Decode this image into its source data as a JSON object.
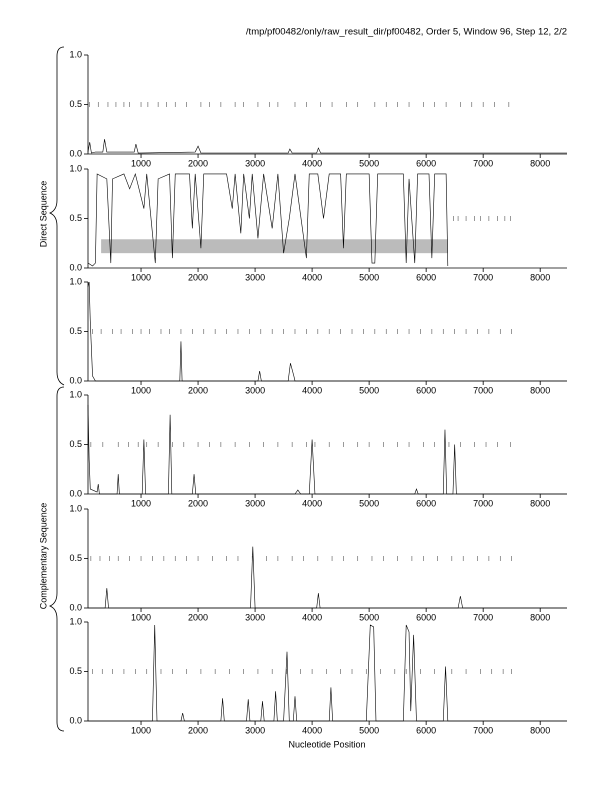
{
  "header": {
    "title": "/tmp/pf00482/only/raw_result_dir/pf00482, Order 5, Window 96, Step 12, 2/2",
    "xlabel": "Nucleotide Position",
    "groups": [
      "Direct Sequence",
      "Complementary Sequence"
    ]
  },
  "chart_data": [
    {
      "type": "line",
      "color": "#000000",
      "xlim": [
        70,
        8470
      ],
      "ylim": [
        0,
        1
      ],
      "xticks": [
        1000,
        2000,
        3000,
        4000,
        5000,
        6000,
        7000,
        8000
      ],
      "yticks": [
        {
          "value": 0,
          "label": "0.0"
        },
        0.5,
        {
          "value": 1,
          "label": "1.0"
        }
      ],
      "x": [
        70,
        100,
        130,
        200,
        330,
        360,
        400,
        880,
        910,
        950,
        1950,
        2000,
        2050,
        3580,
        3610,
        3650,
        4080,
        4110,
        4150,
        6000,
        8470
      ],
      "values": [
        0.02,
        0.12,
        0.01,
        0.02,
        0.02,
        0.15,
        0.02,
        0.02,
        0.1,
        0.01,
        0.02,
        0.08,
        0.01,
        0.01,
        0.05,
        0.01,
        0.01,
        0.06,
        0.01,
        0.01,
        0.01
      ],
      "orf_marks": [
        100,
        250,
        420,
        560,
        700,
        800,
        1000,
        1120,
        1300,
        1450,
        1600,
        1800,
        2050,
        2200,
        2400,
        2650,
        2800,
        3050,
        3250,
        3400,
        3700,
        3900,
        4150,
        4350,
        4600,
        4800,
        5100,
        5300,
        5500,
        5700,
        5950,
        6150,
        6350,
        6600,
        6800,
        7000,
        7200,
        7450
      ]
    },
    {
      "type": "line",
      "color": "#000000",
      "xlim": [
        70,
        8470
      ],
      "ylim": [
        0,
        1
      ],
      "xticks": [
        1000,
        2000,
        3000,
        4000,
        5000,
        6000,
        7000,
        8000
      ],
      "yticks": [
        {
          "value": 0,
          "label": "0.0"
        },
        0.5,
        {
          "value": 1,
          "label": "1.0"
        }
      ],
      "x": [
        70,
        150,
        200,
        230,
        400,
        470,
        500,
        700,
        800,
        900,
        1050,
        1100,
        1250,
        1300,
        1500,
        1550,
        1600,
        1850,
        1900,
        1950,
        2050,
        2100,
        2500,
        2600,
        2650,
        2750,
        2800,
        2900,
        2950,
        3050,
        3150,
        3300,
        3400,
        3500,
        3600,
        3700,
        3900,
        3950,
        4100,
        4200,
        4300,
        4500,
        4550,
        4600,
        5000,
        5050,
        5100,
        5150,
        5600,
        5650,
        5700,
        5800,
        5850,
        6050,
        6100,
        6150,
        6350,
        6380
      ],
      "values": [
        0.05,
        0.02,
        0.05,
        0.95,
        0.9,
        0.05,
        0.9,
        0.95,
        0.8,
        0.95,
        0.6,
        0.95,
        0.05,
        0.9,
        0.95,
        0.1,
        0.95,
        0.95,
        0.4,
        0.95,
        0.2,
        0.95,
        0.95,
        0.6,
        0.95,
        0.35,
        0.95,
        0.5,
        0.95,
        0.3,
        0.95,
        0.4,
        0.95,
        0.15,
        0.5,
        0.95,
        0.1,
        0.95,
        0.95,
        0.5,
        0.95,
        0.95,
        0.2,
        0.95,
        0.95,
        0.05,
        0.05,
        0.95,
        0.95,
        0.05,
        0.9,
        0.05,
        0.95,
        0.95,
        0.1,
        0.95,
        0.95,
        0.02
      ],
      "highlight": {
        "x": [
          300,
          6380
        ],
        "y": [
          0.15,
          0.29
        ]
      },
      "orf_marks": [
        6480,
        6560,
        6700,
        6850,
        6950,
        7100,
        7250,
        7380,
        7480
      ]
    },
    {
      "type": "line",
      "color": "#000000",
      "xlim": [
        70,
        8470
      ],
      "ylim": [
        0,
        1
      ],
      "xticks": [
        1000,
        2000,
        3000,
        4000,
        5000,
        6000,
        7000,
        8000
      ],
      "yticks": [
        {
          "value": 0,
          "label": "0.0"
        },
        0.5,
        {
          "value": 1,
          "label": "1.0"
        }
      ],
      "x": [
        70,
        90,
        110,
        150,
        200,
        1680,
        1700,
        1720,
        3050,
        3080,
        3110,
        3580,
        3620,
        3680,
        3700,
        8470
      ],
      "values": [
        0.95,
        1.0,
        0.6,
        0.05,
        0,
        0,
        0.4,
        0,
        0,
        0.1,
        0,
        0,
        0.18,
        0.05,
        0,
        0
      ],
      "orf_marks": [
        150,
        300,
        500,
        650,
        850,
        1000,
        1150,
        1350,
        1500,
        1700,
        1900,
        2100,
        2300,
        2500,
        2700,
        2900,
        3100,
        3300,
        3500,
        3700,
        3900,
        4100,
        4300,
        4500,
        4700,
        4900,
        5100,
        5300,
        5500,
        5700,
        5900,
        6100,
        6300,
        6500,
        6700,
        6900,
        7100,
        7300,
        7500
      ]
    },
    {
      "type": "line",
      "color": "#000000",
      "xlim": [
        70,
        8470
      ],
      "ylim": [
        0,
        1
      ],
      "xticks": [
        1000,
        2000,
        3000,
        4000,
        5000,
        6000,
        7000,
        8000
      ],
      "yticks": [
        {
          "value": 0,
          "label": "0.0"
        },
        0.5,
        {
          "value": 1,
          "label": "1.0"
        }
      ],
      "x": [
        70,
        90,
        110,
        230,
        250,
        270,
        580,
        600,
        620,
        1020,
        1050,
        1080,
        1480,
        1510,
        1540,
        1900,
        1930,
        1960,
        3700,
        3750,
        3800,
        3950,
        4000,
        4050,
        5800,
        5830,
        5860,
        6300,
        6330,
        6360,
        6470,
        6500,
        6530,
        8470
      ],
      "values": [
        0.9,
        0.35,
        0.05,
        0.02,
        0.1,
        0,
        0,
        0.2,
        0,
        0,
        0.55,
        0,
        0,
        0.8,
        0,
        0,
        0.2,
        0,
        0,
        0.04,
        0,
        0,
        0.55,
        0,
        0,
        0.05,
        0,
        0,
        0.65,
        0,
        0,
        0.5,
        0,
        0
      ],
      "orf_marks": [
        120,
        330,
        600,
        780,
        950,
        1100,
        1300,
        1550,
        1750,
        2000,
        2200,
        2400,
        2650,
        2900,
        3150,
        3400,
        3650,
        3900,
        4050,
        4300,
        4550,
        4800,
        5000,
        5250,
        5500,
        5700,
        5950,
        6150,
        6400,
        6600,
        6850,
        7050,
        7250,
        7480
      ]
    },
    {
      "type": "line",
      "color": "#000000",
      "xlim": [
        70,
        8470
      ],
      "ylim": [
        0,
        1
      ],
      "xticks": [
        1000,
        2000,
        3000,
        4000,
        5000,
        6000,
        7000,
        8000
      ],
      "yticks": [
        {
          "value": 0,
          "label": "0.0"
        },
        0.5,
        {
          "value": 1,
          "label": "1.0"
        }
      ],
      "x": [
        70,
        370,
        400,
        430,
        2920,
        2960,
        3000,
        4080,
        4110,
        4140,
        6560,
        6600,
        6640,
        8470
      ],
      "values": [
        0,
        0,
        0.2,
        0,
        0,
        0.62,
        0,
        0,
        0.15,
        0,
        0,
        0.12,
        0,
        0
      ],
      "orf_marks": [
        120,
        280,
        450,
        600,
        800,
        1000,
        1200,
        1400,
        1600,
        1800,
        2000,
        2250,
        2500,
        2700,
        2950,
        3200,
        3400,
        3650,
        3850,
        4100,
        4350,
        4550,
        4800,
        5050,
        5250,
        5500,
        5750,
        5950,
        6200,
        6450,
        6650,
        6900,
        7100,
        7300,
        7500
      ]
    },
    {
      "type": "line",
      "color": "#000000",
      "xlim": [
        70,
        8470
      ],
      "ylim": [
        0,
        1
      ],
      "xticks": [
        1000,
        2000,
        3000,
        4000,
        5000,
        6000,
        7000,
        8000
      ],
      "yticks": [
        {
          "value": 0,
          "label": "0.0"
        },
        0.5,
        {
          "value": 1,
          "label": "1.0"
        }
      ],
      "x": [
        70,
        1200,
        1240,
        1280,
        1700,
        1730,
        1760,
        2400,
        2430,
        2460,
        2850,
        2880,
        2910,
        3100,
        3130,
        3160,
        3330,
        3360,
        3390,
        3500,
        3560,
        3600,
        3670,
        3700,
        3730,
        4300,
        4330,
        4360,
        4950,
        5020,
        5080,
        5120,
        5600,
        5650,
        5700,
        5730,
        5780,
        5830,
        6300,
        6340,
        6380,
        8470
      ],
      "values": [
        0,
        0,
        0.97,
        0,
        0,
        0.08,
        0,
        0,
        0.23,
        0,
        0,
        0.22,
        0,
        0,
        0.2,
        0,
        0,
        0.3,
        0,
        0,
        0.7,
        0,
        0,
        0.25,
        0,
        0,
        0.34,
        0,
        0,
        0.97,
        0.95,
        0,
        0,
        0.97,
        0.9,
        0.1,
        0.87,
        0,
        0,
        0.55,
        0,
        0
      ],
      "orf_marks": [
        150,
        320,
        500,
        700,
        900,
        1100,
        1350,
        1550,
        1800,
        2050,
        2300,
        2550,
        2800,
        3050,
        3300,
        3550,
        3800,
        4000,
        4250,
        4500,
        4700,
        4950,
        5200,
        5450,
        5650,
        5900,
        6150,
        6450,
        6700,
        6950,
        7150,
        7350,
        7500
      ]
    }
  ]
}
